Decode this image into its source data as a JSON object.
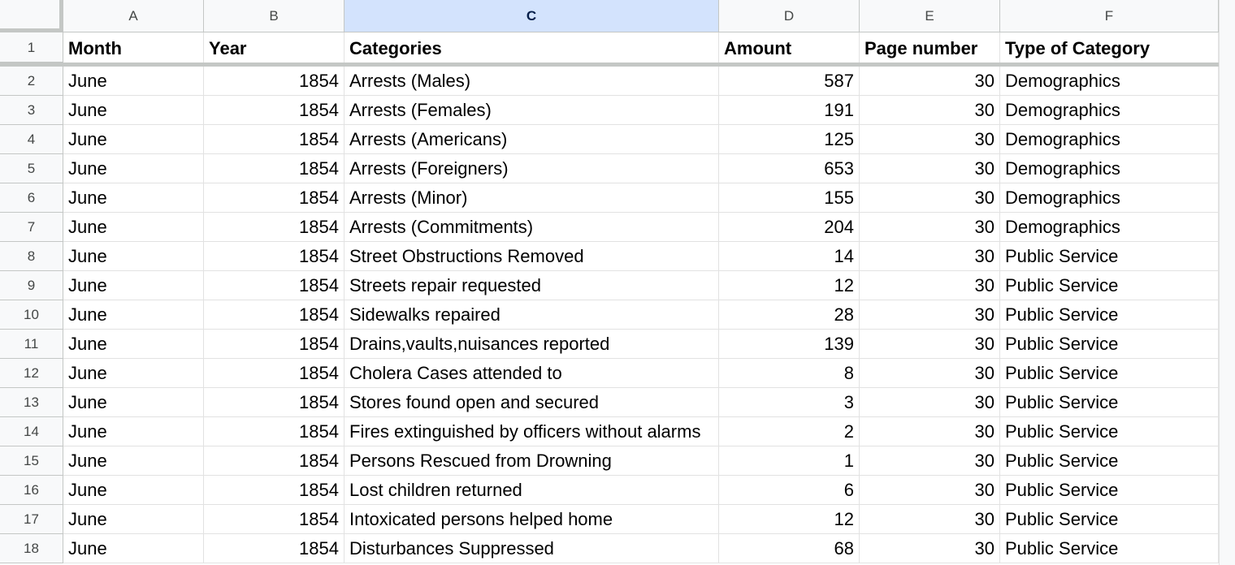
{
  "columns": [
    "A",
    "B",
    "C",
    "D",
    "E",
    "F"
  ],
  "selected_column": "C",
  "header_row": {
    "row_number": "1",
    "cells": [
      "Month",
      "Year",
      "Categories",
      "Amount",
      "Page number",
      "Type of Category"
    ]
  },
  "rows": [
    {
      "n": "2",
      "month": "June",
      "year": "1854",
      "category": "Arrests (Males)",
      "amount": "587",
      "page": "30",
      "type": "Demographics"
    },
    {
      "n": "3",
      "month": "June",
      "year": "1854",
      "category": "Arrests (Females)",
      "amount": "191",
      "page": "30",
      "type": "Demographics"
    },
    {
      "n": "4",
      "month": "June",
      "year": "1854",
      "category": "Arrests (Americans)",
      "amount": "125",
      "page": "30",
      "type": "Demographics"
    },
    {
      "n": "5",
      "month": "June",
      "year": "1854",
      "category": "Arrests (Foreigners)",
      "amount": "653",
      "page": "30",
      "type": "Demographics"
    },
    {
      "n": "6",
      "month": "June",
      "year": "1854",
      "category": "Arrests (Minor)",
      "amount": "155",
      "page": "30",
      "type": "Demographics"
    },
    {
      "n": "7",
      "month": "June",
      "year": "1854",
      "category": "Arrests (Commitments)",
      "amount": "204",
      "page": "30",
      "type": "Demographics"
    },
    {
      "n": "8",
      "month": "June",
      "year": "1854",
      "category": "Street Obstructions Removed",
      "amount": "14",
      "page": "30",
      "type": "Public Service"
    },
    {
      "n": "9",
      "month": "June",
      "year": "1854",
      "category": "Streets repair requested",
      "amount": "12",
      "page": "30",
      "type": "Public Service"
    },
    {
      "n": "10",
      "month": "June",
      "year": "1854",
      "category": "Sidewalks repaired",
      "amount": "28",
      "page": "30",
      "type": "Public Service"
    },
    {
      "n": "11",
      "month": "June",
      "year": "1854",
      "category": "Drains,vaults,nuisances reported",
      "amount": "139",
      "page": "30",
      "type": "Public Service"
    },
    {
      "n": "12",
      "month": "June",
      "year": "1854",
      "category": "Cholera Cases attended to",
      "amount": "8",
      "page": "30",
      "type": "Public Service"
    },
    {
      "n": "13",
      "month": "June",
      "year": "1854",
      "category": "Stores found open and secured",
      "amount": "3",
      "page": "30",
      "type": "Public Service"
    },
    {
      "n": "14",
      "month": "June",
      "year": "1854",
      "category": "Fires extinguished by officers without alarms",
      "amount": "2",
      "page": "30",
      "type": "Public Service"
    },
    {
      "n": "15",
      "month": "June",
      "year": "1854",
      "category": "Persons Rescued from Drowning",
      "amount": "1",
      "page": "30",
      "type": "Public Service"
    },
    {
      "n": "16",
      "month": "June",
      "year": "1854",
      "category": "Lost children returned",
      "amount": "6",
      "page": "30",
      "type": "Public Service"
    },
    {
      "n": "17",
      "month": "June",
      "year": "1854",
      "category": "Intoxicated persons helped home",
      "amount": "12",
      "page": "30",
      "type": "Public Service"
    },
    {
      "n": "18",
      "month": "June",
      "year": "1854",
      "category": "Disturbances Suppressed",
      "amount": "68",
      "page": "30",
      "type": "Public Service"
    }
  ]
}
